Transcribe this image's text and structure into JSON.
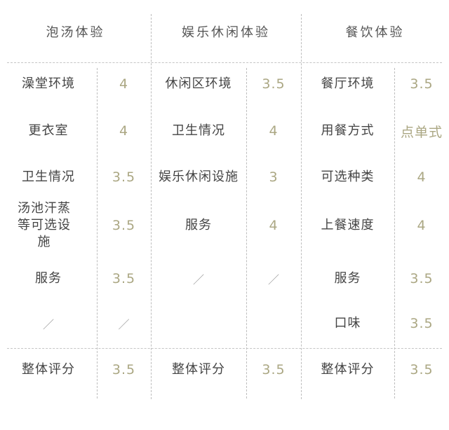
{
  "headers": [
    "泡汤体验",
    "娱乐休闲体验",
    "餐饮体验"
  ],
  "columns": [
    {
      "rows": [
        {
          "label": "澡堂环境",
          "value": "4"
        },
        {
          "label": "更衣室",
          "value": "4"
        },
        {
          "label": "卫生情况",
          "value": "3.5"
        },
        {
          "label": "汤池汗蒸等可选设施",
          "value": "3.5"
        },
        {
          "label": "服务",
          "value": "3.5"
        },
        {
          "label": "／",
          "value": "／"
        }
      ],
      "total": {
        "label": "整体评分",
        "value": "3.5"
      }
    },
    {
      "rows": [
        {
          "label": "休闲区环境",
          "value": "3.5"
        },
        {
          "label": "卫生情况",
          "value": "4"
        },
        {
          "label": "娱乐休闲设施",
          "value": "3"
        },
        {
          "label": "服务",
          "value": "4"
        },
        {
          "label": "／",
          "value": "／"
        },
        {
          "label": "",
          "value": ""
        }
      ],
      "total": {
        "label": "整体评分",
        "value": "3.5"
      }
    },
    {
      "rows": [
        {
          "label": "餐厅环境",
          "value": "3.5"
        },
        {
          "label": "用餐方式",
          "value": "点单式"
        },
        {
          "label": "可选种类",
          "value": "4"
        },
        {
          "label": "上餐速度",
          "value": "4"
        },
        {
          "label": "服务",
          "value": "3.5"
        },
        {
          "label": "口味",
          "value": "3.5"
        }
      ],
      "total": {
        "label": "整体评分",
        "value": "3.5"
      }
    }
  ],
  "colors": {
    "value": "#aba783",
    "label": "#444444",
    "divider": "#bdbdbd"
  }
}
